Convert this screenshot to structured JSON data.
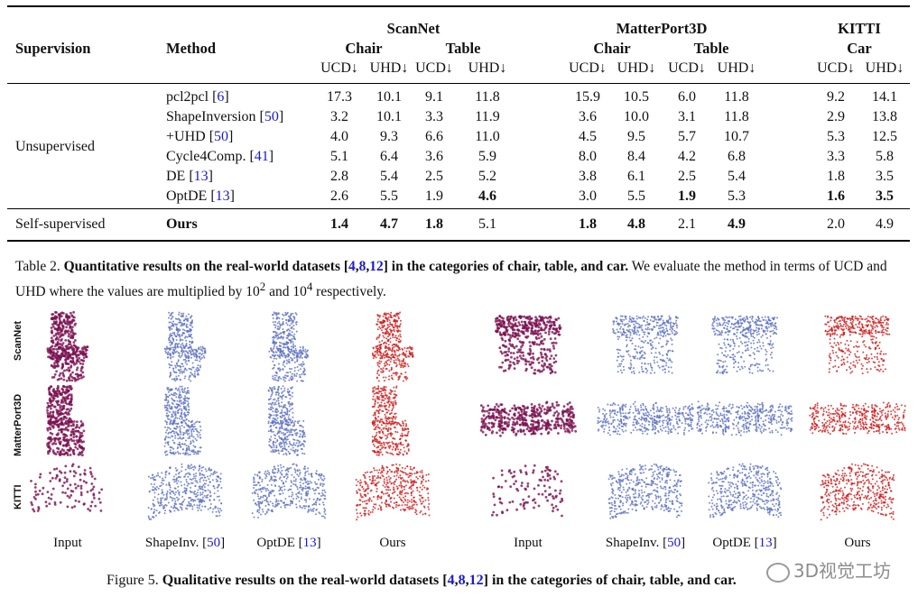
{
  "table": {
    "groups": [
      "ScanNet",
      "MatterPort3D",
      "KITTI"
    ],
    "subgroups": [
      "Chair",
      "Table",
      "Chair",
      "Table",
      "Car"
    ],
    "supervision_header": "Supervision",
    "method_header": "Method",
    "metrics": [
      "UCD↓",
      "UHD↓"
    ],
    "unsupervised_label": "Unsupervised",
    "selfsupervised_label": "Self-supervised",
    "rows": [
      {
        "method": "pcl2pcl",
        "ref": "6",
        "values": [
          "17.3",
          "10.1",
          "9.1",
          "11.8",
          "15.9",
          "10.5",
          "6.0",
          "11.8",
          "9.2",
          "14.1"
        ],
        "bold": []
      },
      {
        "method": "ShapeInversion",
        "ref": "50",
        "values": [
          "3.2",
          "10.1",
          "3.3",
          "11.9",
          "3.6",
          "10.0",
          "3.1",
          "11.8",
          "2.9",
          "13.8"
        ],
        "bold": []
      },
      {
        "method": "+UHD",
        "ref": "50",
        "values": [
          "4.0",
          "9.3",
          "6.6",
          "11.0",
          "4.5",
          "9.5",
          "5.7",
          "10.7",
          "5.3",
          "12.5"
        ],
        "bold": []
      },
      {
        "method": "Cycle4Comp.",
        "ref": "41",
        "values": [
          "5.1",
          "6.4",
          "3.6",
          "5.9",
          "8.0",
          "8.4",
          "4.2",
          "6.8",
          "3.3",
          "5.8"
        ],
        "bold": []
      },
      {
        "method": "DE",
        "ref": "13",
        "values": [
          "2.8",
          "5.4",
          "2.5",
          "5.2",
          "3.8",
          "6.1",
          "2.5",
          "5.4",
          "1.8",
          "3.5"
        ],
        "bold": []
      },
      {
        "method": "OptDE",
        "ref": "13",
        "values": [
          "2.6",
          "5.5",
          "1.9",
          "4.6",
          "3.0",
          "5.5",
          "1.9",
          "5.3",
          "1.6",
          "3.5"
        ],
        "bold": [
          3,
          6,
          8,
          9
        ]
      }
    ],
    "ours": {
      "method": "Ours",
      "values": [
        "1.4",
        "4.7",
        "1.8",
        "5.1",
        "1.8",
        "4.8",
        "2.1",
        "4.9",
        "2.0",
        "4.9"
      ],
      "bold": [
        0,
        1,
        2,
        4,
        5,
        7
      ]
    }
  },
  "table_caption": {
    "prefix": "Table 2. ",
    "bold_part": "Quantitative results on the real-world datasets [",
    "refs": [
      "4",
      "8",
      "12"
    ],
    "bold_tail": "] in the categories of chair, table, and car.",
    "normal_part": " We evaluate the method in terms of UCD and UHD where the values are multiplied by 10",
    "sup1": "2",
    "mid": " and 10",
    "sup2": "4",
    "end": " respectively."
  },
  "figure": {
    "row_labels": [
      "ScanNet",
      "MatterPort3D",
      "KITTI"
    ],
    "col_labels": [
      {
        "text": "Input",
        "ref": ""
      },
      {
        "text": "ShapeInv. [",
        "ref": "50"
      },
      {
        "text": "OptDE [",
        "ref": "13"
      },
      {
        "text": "Ours",
        "ref": ""
      },
      {
        "text": "Input",
        "ref": ""
      },
      {
        "text": "ShapeInv. [",
        "ref": "50"
      },
      {
        "text": "OptDE [",
        "ref": "13"
      },
      {
        "text": "Ours",
        "ref": ""
      }
    ],
    "point_colors": {
      "input": "#7a1050",
      "shapeinv": "#5b6fbf",
      "optde": "#5b6fbf",
      "ours": "#cc1a1a"
    },
    "caption_prefix": "Figure 5. ",
    "caption_bold": "Qualitative results on the real-world datasets [",
    "caption_refs": [
      "4",
      "8",
      "12"
    ],
    "caption_tail": "] in the categories of chair, table, and car.",
    "watermark": "3D视觉工坊"
  }
}
